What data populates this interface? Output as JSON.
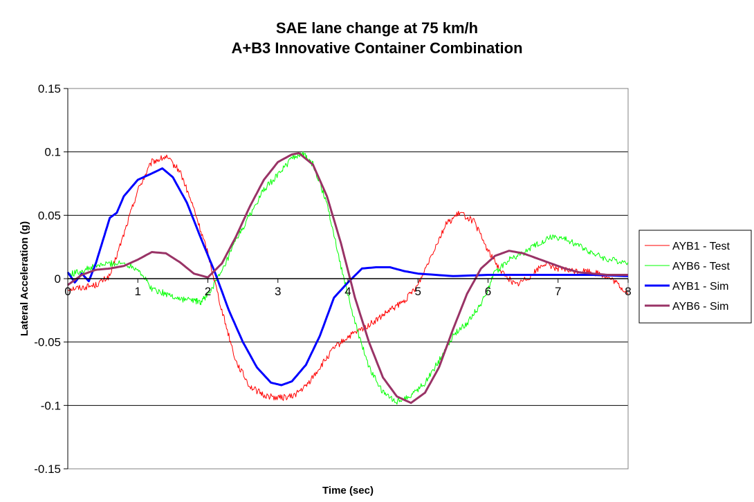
{
  "chart_data": {
    "type": "line",
    "title": "SAE lane change at 75 km/h",
    "subtitle": "A+B3 Innovative Container Combination",
    "xlabel": "Time (sec)",
    "ylabel": "Lateral Acceleration (g)",
    "xlim": [
      0,
      8
    ],
    "ylim": [
      -0.15,
      0.15
    ],
    "x_ticks": [
      0,
      1,
      2,
      3,
      4,
      5,
      6,
      7,
      8
    ],
    "x_tick_labels": [
      "0",
      "1",
      "2",
      "3",
      "4",
      "5",
      "6",
      "7",
      "8"
    ],
    "y_ticks": [
      0.15,
      0.1,
      0.05,
      0,
      -0.05,
      -0.1,
      -0.15
    ],
    "y_tick_labels": [
      "0.15",
      "0.1",
      "0.05",
      "0",
      "-0.05",
      "-0.1",
      "-0.15"
    ],
    "grid": "horizontal",
    "legend_position": "right",
    "series": [
      {
        "name": "AYB1 - Test",
        "color": "#ff0000",
        "width": 1,
        "noise": 0.0025,
        "x": [
          0,
          0.2,
          0.4,
          0.6,
          0.8,
          1.0,
          1.2,
          1.4,
          1.6,
          1.8,
          2.0,
          2.2,
          2.4,
          2.6,
          2.8,
          3.0,
          3.2,
          3.4,
          3.6,
          3.8,
          4.0,
          4.2,
          4.4,
          4.6,
          4.8,
          5.0,
          5.2,
          5.4,
          5.6,
          5.8,
          6.0,
          6.2,
          6.4,
          6.6,
          6.8,
          7.0,
          7.2,
          7.4,
          7.6,
          7.8,
          8.0
        ],
        "y": [
          -0.008,
          -0.007,
          -0.005,
          0.002,
          0.035,
          0.07,
          0.092,
          0.096,
          0.085,
          0.055,
          0.02,
          -0.025,
          -0.065,
          -0.085,
          -0.092,
          -0.094,
          -0.093,
          -0.085,
          -0.07,
          -0.055,
          -0.046,
          -0.04,
          -0.033,
          -0.025,
          -0.018,
          -0.005,
          0.02,
          0.043,
          0.052,
          0.045,
          0.022,
          0.005,
          -0.005,
          0.002,
          0.012,
          0.008,
          0.006,
          0.006,
          0.004,
          -0.002,
          -0.012
        ]
      },
      {
        "name": "AYB6 - Test",
        "color": "#00ff00",
        "width": 1,
        "noise": 0.0025,
        "x": [
          0,
          0.2,
          0.4,
          0.6,
          0.8,
          1.0,
          1.2,
          1.4,
          1.6,
          1.8,
          1.9,
          2.0,
          2.2,
          2.4,
          2.6,
          2.8,
          3.0,
          3.2,
          3.35,
          3.5,
          3.7,
          3.9,
          4.1,
          4.3,
          4.5,
          4.7,
          4.9,
          5.1,
          5.3,
          5.5,
          5.7,
          5.9,
          6.1,
          6.3,
          6.5,
          6.7,
          6.9,
          7.1,
          7.3,
          7.5,
          7.7,
          8.0
        ],
        "y": [
          0.003,
          0.006,
          0.01,
          0.012,
          0.012,
          0.008,
          -0.008,
          -0.012,
          -0.016,
          -0.017,
          -0.019,
          -0.012,
          0.005,
          0.03,
          0.05,
          0.07,
          0.082,
          0.095,
          0.099,
          0.09,
          0.06,
          0.01,
          -0.035,
          -0.07,
          -0.09,
          -0.097,
          -0.092,
          -0.082,
          -0.065,
          -0.045,
          -0.035,
          -0.02,
          0.005,
          0.015,
          0.02,
          0.027,
          0.033,
          0.031,
          0.026,
          0.02,
          0.015,
          0.013
        ]
      },
      {
        "name": "AYB1 - Sim",
        "color": "#0000ff",
        "width": 3,
        "noise": 0,
        "x": [
          0,
          0.1,
          0.2,
          0.3,
          0.4,
          0.5,
          0.6,
          0.7,
          0.8,
          1.0,
          1.2,
          1.35,
          1.5,
          1.7,
          1.9,
          2.1,
          2.3,
          2.5,
          2.7,
          2.9,
          3.05,
          3.2,
          3.4,
          3.6,
          3.8,
          4.0,
          4.2,
          4.4,
          4.6,
          4.8,
          5.0,
          5.5,
          6.0,
          6.5,
          7.0,
          7.5,
          8.0
        ],
        "y": [
          0.005,
          -0.003,
          0.004,
          -0.002,
          0.012,
          0.03,
          0.048,
          0.052,
          0.065,
          0.078,
          0.083,
          0.087,
          0.08,
          0.06,
          0.032,
          0.005,
          -0.025,
          -0.05,
          -0.07,
          -0.082,
          -0.084,
          -0.081,
          -0.068,
          -0.045,
          -0.015,
          -0.003,
          0.008,
          0.009,
          0.009,
          0.006,
          0.004,
          0.002,
          0.003,
          0.003,
          0.003,
          0.003,
          0.002
        ]
      },
      {
        "name": "AYB6 - Sim",
        "color": "#993366",
        "width": 3,
        "noise": 0,
        "x": [
          0,
          0.2,
          0.4,
          0.6,
          0.8,
          1.0,
          1.2,
          1.4,
          1.6,
          1.8,
          2.0,
          2.2,
          2.4,
          2.6,
          2.8,
          3.0,
          3.2,
          3.3,
          3.5,
          3.7,
          3.9,
          4.1,
          4.3,
          4.5,
          4.7,
          4.9,
          5.1,
          5.3,
          5.5,
          5.7,
          5.9,
          6.1,
          6.3,
          6.5,
          6.7,
          6.9,
          7.1,
          7.3,
          7.5,
          7.7,
          8.0
        ],
        "y": [
          -0.005,
          0.003,
          0.007,
          0.008,
          0.01,
          0.015,
          0.021,
          0.02,
          0.013,
          0.004,
          0.001,
          0.012,
          0.033,
          0.057,
          0.078,
          0.092,
          0.098,
          0.099,
          0.09,
          0.065,
          0.028,
          -0.015,
          -0.05,
          -0.078,
          -0.093,
          -0.098,
          -0.09,
          -0.07,
          -0.04,
          -0.012,
          0.008,
          0.018,
          0.022,
          0.02,
          0.016,
          0.012,
          0.008,
          0.005,
          0.004,
          0.003,
          0.003
        ]
      }
    ]
  }
}
